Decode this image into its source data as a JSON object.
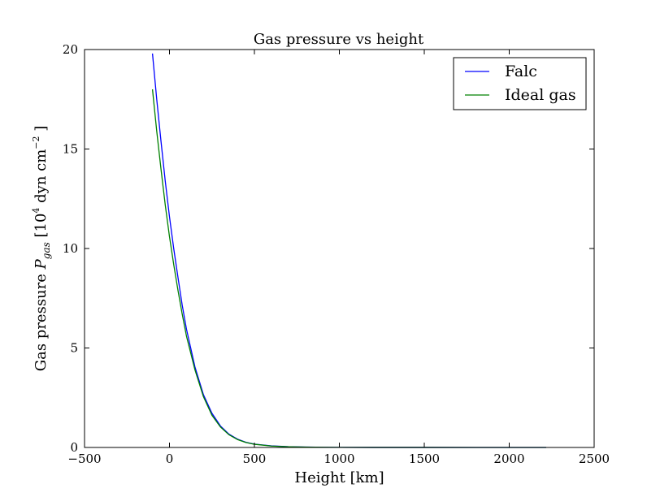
{
  "chart_data": {
    "type": "line",
    "title": "Gas pressure vs height",
    "xlabel": "Height [km]",
    "ylabel_prefix": "Gas pressure ",
    "ylabel_symbol": "P",
    "ylabel_subscript": "gas",
    "ylabel_unit_open": " [10",
    "ylabel_unit_exp1": "4",
    "ylabel_unit_mid": " dyn cm",
    "ylabel_unit_exp2": "−2",
    "ylabel_unit_close": " ]",
    "xlim": [
      -500,
      2500
    ],
    "ylim": [
      0,
      20
    ],
    "xticks": [
      -500,
      0,
      500,
      1000,
      1500,
      2000,
      2500
    ],
    "yticks": [
      0,
      5,
      10,
      15,
      20
    ],
    "xtick_labels": [
      "−500",
      "0",
      "500",
      "1000",
      "1500",
      "2000",
      "2500"
    ],
    "ytick_labels": [
      "0",
      "5",
      "10",
      "15",
      "20"
    ],
    "grid": false,
    "legend_position": "top-right",
    "series": [
      {
        "name": "Falc",
        "color": "#0000ff",
        "x": [
          -100,
          -75,
          -50,
          -25,
          0,
          25,
          50,
          75,
          100,
          150,
          200,
          250,
          300,
          350,
          400,
          450,
          500,
          600,
          700,
          800,
          900,
          1000,
          1200,
          1500,
          1800,
          2000,
          2218
        ],
        "y": [
          19.8,
          17.5,
          15.4,
          13.4,
          11.6,
          10.0,
          8.55,
          7.15,
          5.95,
          4.05,
          2.65,
          1.72,
          1.08,
          0.67,
          0.42,
          0.26,
          0.17,
          0.08,
          0.04,
          0.02,
          0.01,
          0.006,
          0.003,
          0.002,
          0.001,
          0.001,
          0.001
        ]
      },
      {
        "name": "Ideal gas",
        "color": "#008000",
        "x": [
          -100,
          -75,
          -50,
          -25,
          0,
          25,
          50,
          75,
          100,
          150,
          200,
          250,
          300,
          350,
          400,
          450,
          500,
          600,
          700,
          800,
          900,
          1000,
          1200,
          1500,
          1800,
          2000,
          2218
        ],
        "y": [
          18.0,
          15.9,
          14.0,
          12.2,
          10.6,
          9.2,
          7.9,
          6.7,
          5.6,
          3.9,
          2.55,
          1.62,
          1.03,
          0.64,
          0.4,
          0.25,
          0.16,
          0.07,
          0.035,
          0.018,
          0.009,
          0.005,
          0.003,
          0.002,
          0.001,
          0.001,
          0.001
        ]
      }
    ]
  }
}
